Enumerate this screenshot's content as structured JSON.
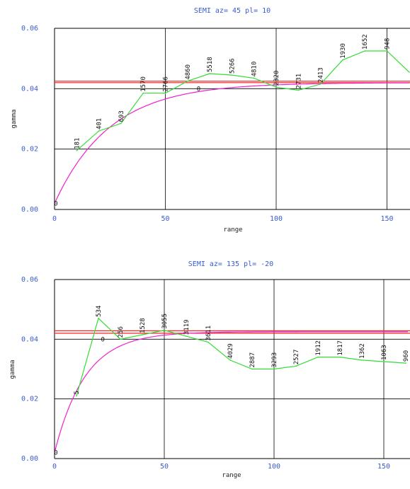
{
  "chart_data": [
    {
      "type": "line",
      "title": "SEMI   az= 45  pl= 10",
      "xlabel": "range",
      "ylabel": "gamma",
      "xlim": [
        0,
        160
      ],
      "ylim": [
        0.0,
        0.06
      ],
      "x_ticks": [
        "0",
        "50",
        "100",
        "150"
      ],
      "y_ticks": [
        "0.00",
        "0.02",
        "0.04",
        "0.06"
      ],
      "colors": {
        "empirical": "#33dd33",
        "model": "#ee22cc",
        "sill": "#ee2222",
        "grid": "#000000",
        "tick_text": "#3a5bd0"
      },
      "sill": [
        0.042,
        0.0425
      ],
      "series": [
        {
          "name": "",
          "kind": "empirical",
          "x": [
            10,
            20,
            30,
            40,
            50,
            60,
            70,
            80,
            90,
            100,
            110,
            120,
            130,
            140,
            150,
            160
          ],
          "y": [
            0.0195,
            0.026,
            0.0285,
            0.0385,
            0.0385,
            0.0425,
            0.045,
            0.0445,
            0.0435,
            0.0405,
            0.0395,
            0.0415,
            0.0495,
            0.0525,
            0.0525,
            0.0455
          ],
          "labels": [
            "181",
            "401",
            "693",
            "1570",
            "2766",
            "4860",
            "5518",
            "5266",
            "4810",
            "2320",
            "2731",
            "2413",
            "1930",
            "1652",
            "948",
            ""
          ]
        },
        {
          "name": "",
          "kind": "model",
          "model": "exponential",
          "nugget": 0.002,
          "sill": 0.042,
          "range": 25
        }
      ],
      "markers": [
        {
          "x": 0,
          "y": 0.002,
          "label": "0"
        },
        {
          "x": 65,
          "y": 0.04,
          "label": "0"
        }
      ]
    },
    {
      "type": "line",
      "title": "SEMI   az= 135  pl= -20",
      "xlabel": "range",
      "ylabel": "gamma",
      "xlim": [
        0,
        160
      ],
      "ylim": [
        0.0,
        0.06
      ],
      "x_ticks": [
        "0",
        "50",
        "100",
        "150"
      ],
      "y_ticks": [
        "0.00",
        "0.02",
        "0.04",
        "0.06"
      ],
      "colors": {
        "empirical": "#33dd33",
        "model": "#ee22cc",
        "sill": "#ee2222",
        "grid": "#000000",
        "tick_text": "#3a5bd0"
      },
      "sill": [
        0.042,
        0.0428
      ],
      "series": [
        {
          "name": "",
          "kind": "empirical",
          "x": [
            10,
            20,
            30,
            40,
            50,
            60,
            70,
            80,
            90,
            100,
            110,
            120,
            130,
            140,
            150,
            160
          ],
          "y": [
            0.021,
            0.047,
            0.04,
            0.0415,
            0.043,
            0.041,
            0.039,
            0.033,
            0.03,
            0.03,
            0.031,
            0.034,
            0.034,
            0.033,
            0.0325,
            0.032
          ],
          "labels": [
            "5",
            "534",
            "256",
            "1528",
            "3055",
            "3119",
            "3611",
            "4029",
            "2887",
            "3293",
            "2527",
            "1912",
            "1817",
            "1362",
            "1063",
            "960"
          ]
        },
        {
          "name": "",
          "kind": "model",
          "model": "exponential",
          "nugget": 0.002,
          "sill": 0.0425,
          "range": 14
        }
      ],
      "markers": [
        {
          "x": 0,
          "y": 0.002,
          "label": "0"
        },
        {
          "x": 22,
          "y": 0.04,
          "label": "0"
        }
      ]
    }
  ]
}
